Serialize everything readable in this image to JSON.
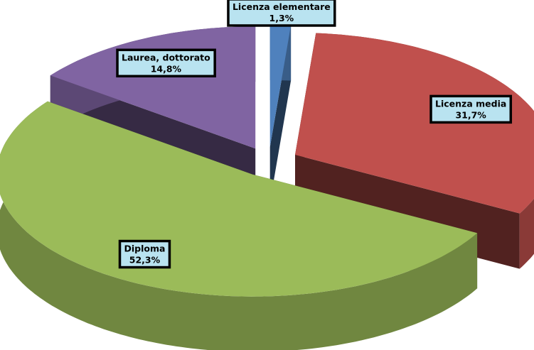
{
  "chart_data": {
    "type": "pie",
    "categories": [
      "Licenza elementare",
      "Licenza media",
      "Diploma",
      "Laurea, dottorato"
    ],
    "values": [
      1.3,
      31.7,
      52.3,
      14.8
    ],
    "value_labels": [
      "1,3%",
      "31,7%",
      "52,3%",
      "14,8%"
    ],
    "colors": [
      "#4f81bd",
      "#c0504d",
      "#9bbb59",
      "#8064a2"
    ]
  }
}
